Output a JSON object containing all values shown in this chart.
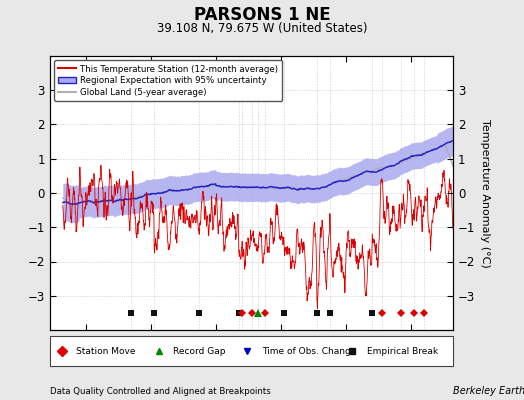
{
  "title": "PARSONS 1 NE",
  "subtitle": "39.108 N, 79.675 W (United States)",
  "ylabel": "Temperature Anomaly (°C)",
  "xlabel_note": "Data Quality Controlled and Aligned at Breakpoints",
  "source_note": "Berkeley Earth",
  "ylim": [
    -4,
    4
  ],
  "xlim": [
    1889,
    2013
  ],
  "xticks": [
    1900,
    1920,
    1940,
    1960,
    1980,
    2000
  ],
  "yticks": [
    -3,
    -2,
    -1,
    0,
    1,
    2,
    3
  ],
  "background_color": "#e8e8e8",
  "plot_bg_color": "#ffffff",
  "station_color": "#dd0000",
  "regional_color": "#2222cc",
  "uncertainty_color": "#aaaaee",
  "global_color": "#b0b0b0",
  "marker_station_move_color": "#dd0000",
  "marker_record_gap_color": "#008800",
  "marker_obs_change_color": "#0000cc",
  "marker_empirical_break_color": "#111111",
  "station_moves": [
    1948,
    1951,
    1955,
    1991,
    1997,
    2001,
    2004
  ],
  "record_gaps": [
    1953
  ],
  "obs_changes": [],
  "empirical_breaks": [
    1914,
    1921,
    1935,
    1947,
    1961,
    1971,
    1975,
    1988
  ],
  "seed": 12345
}
